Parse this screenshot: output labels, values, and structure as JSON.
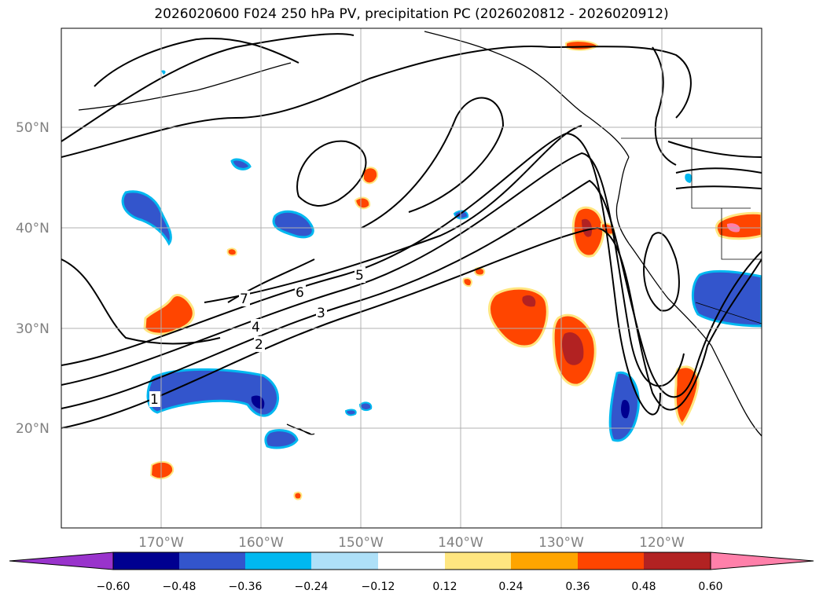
{
  "title": "2026020600 F024 250 hPa PV, precipitation PC (2026020812 - 2026020912)",
  "lat_labels": [
    "50°N",
    "40°N",
    "30°N",
    "20°N"
  ],
  "lon_labels": [
    "170°W",
    "160°W",
    "150°W",
    "140°W",
    "130°W",
    "120°W"
  ],
  "pv_contour_labels": [
    "1",
    "2",
    "3",
    "4",
    "5",
    "6",
    "7"
  ],
  "colorbar": {
    "ticks": [
      "−0.60",
      "−0.48",
      "−0.36",
      "−0.24",
      "−0.12",
      "0.12",
      "0.24",
      "0.36",
      "0.48",
      "0.60"
    ],
    "colors": [
      "#9933cc",
      "#000090",
      "#3355cc",
      "#00b8f0",
      "#aee0f8",
      "#ffffff",
      "#ffe680",
      "#ffa500",
      "#ff4500",
      "#b22222",
      "#ff80aa"
    ]
  },
  "colors": {
    "land_outline": "#000000",
    "grid": "#b0b0b0",
    "neg_dark": "#000090",
    "neg_mid": "#3355cc",
    "neg_light": "#00b8f0",
    "pos_light": "#ffe680",
    "pos_mid": "#ff4500",
    "pos_dark": "#b22222"
  }
}
